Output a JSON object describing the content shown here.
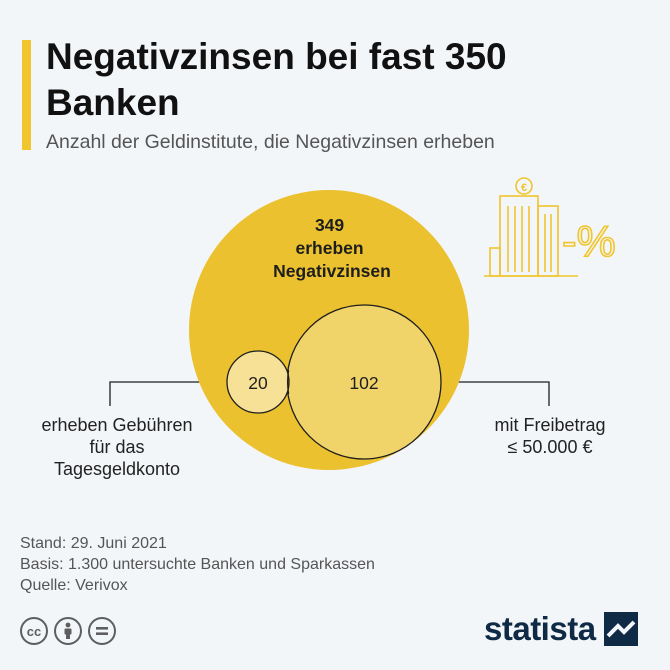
{
  "header": {
    "title": "Negativzinsen bei fast 350 Banken",
    "subtitle": "Anzahl der Geldinstitute, die Negativzinsen erheben"
  },
  "diagram": {
    "type": "nested-venn",
    "sets": [
      {
        "id": "negativzinsen",
        "value": 349,
        "label_lines": [
          "349",
          "erheben",
          "Negativzinsen"
        ]
      },
      {
        "id": "gebuehren",
        "value": 20,
        "label": "20",
        "caption_lines": [
          "erheben Gebühren",
          "für das",
          "Tagesgeldkonto"
        ]
      },
      {
        "id": "freibetrag",
        "value": 102,
        "label": "102",
        "caption_lines": [
          "mit Freibetrag",
          "≤ 50.000 €"
        ]
      }
    ],
    "colors": {
      "outer": "#ebc12f",
      "freibetrag": "#f0d46a",
      "gebuehren": "#f7e4a1",
      "stroke": "#1e1e1e"
    },
    "icon": {
      "name": "bank-building-negative-percent-icon",
      "text": "-%",
      "symbol": "€"
    }
  },
  "footer": {
    "stand": "Stand: 29. Juni 2021",
    "basis": "Basis: 1.300 untersuchte Banken und Sparkassen",
    "quelle": "Quelle: Verivox",
    "license_icons": [
      "cc-icon",
      "attribution-icon",
      "no-derivatives-icon"
    ],
    "brand": "statista"
  }
}
